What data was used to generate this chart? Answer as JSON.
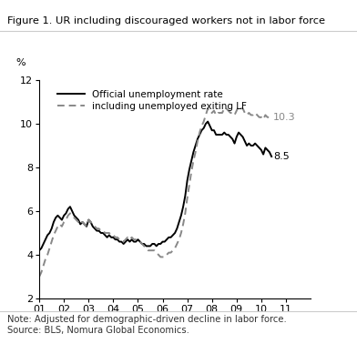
{
  "title": "Figure 1. UR including discouraged workers not in labor force",
  "note": "Note: Adjusted for demographic-driven decline in labor force.\nSource: BLS, Nomura Global Economics.",
  "ylabel": "%",
  "ylim": [
    2,
    12
  ],
  "yticks": [
    2,
    4,
    6,
    8,
    10,
    12
  ],
  "xtick_labels": [
    "01",
    "02",
    "03",
    "04",
    "05",
    "06",
    "07",
    "08",
    "09",
    "10",
    "11"
  ],
  "legend_official": "Official unemployment rate",
  "legend_adjusted": "including unemployed exiting LF",
  "label_official": "8.5",
  "label_adjusted": "10.3",
  "official_color": "#000000",
  "adjusted_color": "#888888",
  "background_color": "#ffffff",
  "official_data": [
    4.2,
    4.3,
    4.5,
    4.7,
    4.9,
    5.0,
    5.2,
    5.5,
    5.7,
    5.8,
    5.7,
    5.6,
    5.8,
    5.9,
    6.1,
    6.2,
    6.0,
    5.8,
    5.7,
    5.6,
    5.4,
    5.5,
    5.4,
    5.3,
    5.6,
    5.5,
    5.3,
    5.2,
    5.1,
    5.1,
    5.0,
    5.0,
    4.9,
    4.8,
    4.9,
    4.8,
    4.8,
    4.7,
    4.7,
    4.6,
    4.6,
    4.5,
    4.6,
    4.7,
    4.6,
    4.7,
    4.6,
    4.6,
    4.7,
    4.6,
    4.5,
    4.5,
    4.4,
    4.4,
    4.4,
    4.5,
    4.5,
    4.4,
    4.5,
    4.5,
    4.6,
    4.6,
    4.7,
    4.8,
    4.8,
    4.9,
    5.0,
    5.2,
    5.5,
    5.8,
    6.2,
    6.7,
    7.4,
    7.9,
    8.3,
    8.7,
    9.0,
    9.3,
    9.5,
    9.7,
    9.8,
    10.0,
    10.1,
    9.9,
    9.7,
    9.7,
    9.5,
    9.5,
    9.5,
    9.5,
    9.6,
    9.5,
    9.5,
    9.4,
    9.3,
    9.1,
    9.4,
    9.6,
    9.5,
    9.4,
    9.2,
    9.0,
    9.1,
    9.0,
    9.0,
    9.1,
    9.0,
    8.9,
    8.8,
    8.6,
    8.9,
    8.8,
    8.7,
    8.5
  ],
  "adjusted_data": [
    3.0,
    3.2,
    3.5,
    3.8,
    4.0,
    4.3,
    4.6,
    4.9,
    5.1,
    5.3,
    5.4,
    5.3,
    5.5,
    5.6,
    5.8,
    5.9,
    5.8,
    5.7,
    5.6,
    5.5,
    5.4,
    5.5,
    5.4,
    5.3,
    5.6,
    5.5,
    5.4,
    5.3,
    5.2,
    5.2,
    5.1,
    5.1,
    5.0,
    5.0,
    5.0,
    4.9,
    4.9,
    4.8,
    4.8,
    4.7,
    4.7,
    4.6,
    4.7,
    4.8,
    4.7,
    4.8,
    4.7,
    4.7,
    4.7,
    4.6,
    4.5,
    4.4,
    4.3,
    4.2,
    4.2,
    4.2,
    4.2,
    4.1,
    4.0,
    3.9,
    3.9,
    3.9,
    4.0,
    4.1,
    4.1,
    4.2,
    4.3,
    4.5,
    4.7,
    5.0,
    5.4,
    5.9,
    6.6,
    7.2,
    7.8,
    8.3,
    8.7,
    9.2,
    9.6,
    9.9,
    10.1,
    10.4,
    10.7,
    10.5,
    10.5,
    10.6,
    10.4,
    10.5,
    10.5,
    10.5,
    10.7,
    10.7,
    10.6,
    10.5,
    10.5,
    10.4,
    10.6,
    10.8,
    10.7,
    10.7,
    10.5,
    10.4,
    10.5,
    10.4,
    10.4,
    10.5,
    10.4,
    10.3,
    10.3,
    10.2,
    10.4,
    10.3,
    10.3,
    10.3
  ]
}
